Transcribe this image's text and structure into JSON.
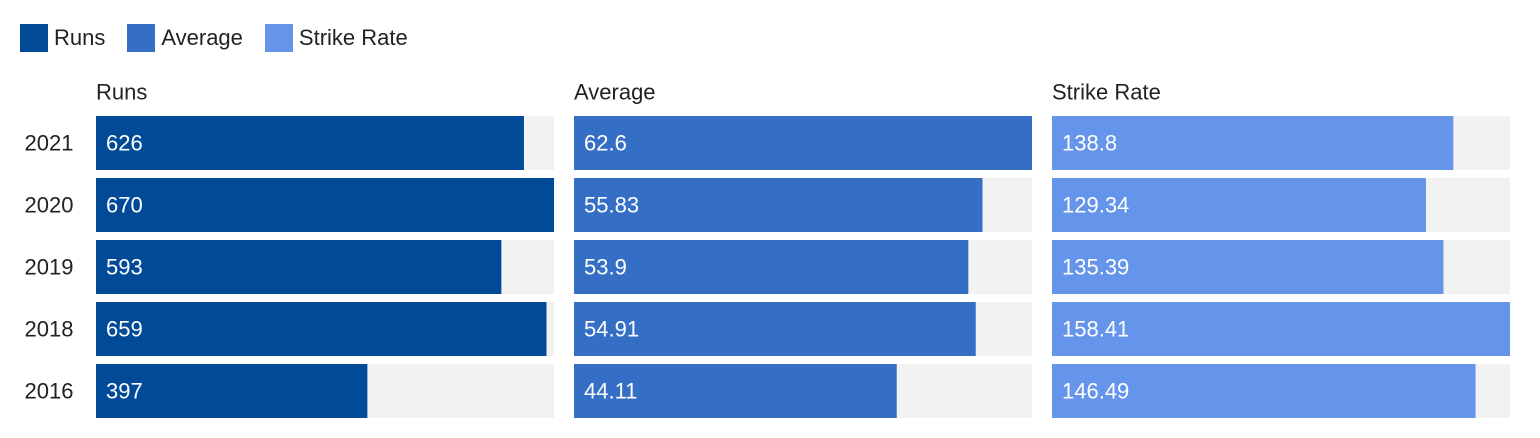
{
  "legend": [
    {
      "label": "Runs",
      "color": "#004a97"
    },
    {
      "label": "Average",
      "color": "#346fc5"
    },
    {
      "label": "Strike Rate",
      "color": "#6595ea"
    }
  ],
  "chart_data": {
    "type": "bar",
    "orientation": "horizontal",
    "layout": "small-multiples",
    "categories": [
      "2021",
      "2020",
      "2019",
      "2018",
      "2016"
    ],
    "series": [
      {
        "name": "Runs",
        "color": "#004a97",
        "values": [
          626,
          670,
          593,
          659,
          397
        ]
      },
      {
        "name": "Average",
        "color": "#346fc5",
        "values": [
          62.6,
          55.83,
          53.9,
          54.91,
          44.11
        ]
      },
      {
        "name": "Strike Rate",
        "color": "#6595ea",
        "values": [
          138.8,
          129.34,
          135.39,
          158.41,
          146.49
        ]
      }
    ],
    "track_color": "#f2f2f2",
    "legend_position": "top-left",
    "grid": false
  }
}
